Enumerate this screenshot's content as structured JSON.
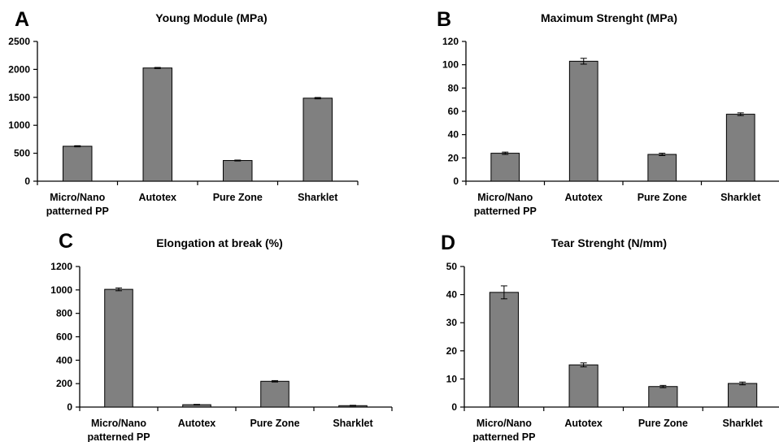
{
  "chart_data": [
    {
      "type": "bar",
      "panel_label": "A",
      "title": "Young Module (MPa)",
      "categories": [
        "Micro/Nano\npatterned PP",
        "Autotex",
        "Pure Zone",
        "Sharklet"
      ],
      "values": [
        625,
        2025,
        370,
        1485
      ],
      "errors": [
        10,
        10,
        8,
        12
      ],
      "ylim": [
        0,
        2500
      ],
      "yticks": [
        0,
        500,
        1000,
        1500,
        2000,
        2500
      ],
      "bar_color": "#808080",
      "grid": false,
      "legend": "none"
    },
    {
      "type": "bar",
      "panel_label": "B",
      "title": "Maximum Strenght (MPa)",
      "categories": [
        "Micro/Nano\npatterned PP",
        "Autotex",
        "Pure Zone",
        "Sharklet"
      ],
      "values": [
        24,
        103,
        23,
        57.5
      ],
      "errors": [
        1,
        2.5,
        1,
        1.2
      ],
      "ylim": [
        0,
        120
      ],
      "yticks": [
        0,
        20,
        40,
        60,
        80,
        100,
        120
      ],
      "bar_color": "#808080",
      "grid": false,
      "legend": "none"
    },
    {
      "type": "bar",
      "panel_label": "C",
      "title": "Elongation at break (%)",
      "categories": [
        "Micro/Nano\npatterned PP",
        "Autotex",
        "Pure Zone",
        "Sharklet"
      ],
      "values": [
        1005,
        20,
        220,
        12
      ],
      "errors": [
        12,
        3,
        6,
        3
      ],
      "ylim": [
        0,
        1200
      ],
      "yticks": [
        0,
        200,
        400,
        600,
        800,
        1000,
        1200
      ],
      "bar_color": "#808080",
      "grid": false,
      "legend": "none"
    },
    {
      "type": "bar",
      "panel_label": "D",
      "title": "Tear Strenght (N/mm)",
      "categories": [
        "Micro/Nano\npatterned PP",
        "Autotex",
        "Pure Zone",
        "Sharklet"
      ],
      "values": [
        40.8,
        15,
        7.3,
        8.4
      ],
      "errors": [
        2.3,
        0.7,
        0.4,
        0.5
      ],
      "ylim": [
        0,
        50
      ],
      "yticks": [
        0,
        10,
        20,
        30,
        40,
        50
      ],
      "bar_color": "#808080",
      "grid": false,
      "legend": "none"
    }
  ]
}
